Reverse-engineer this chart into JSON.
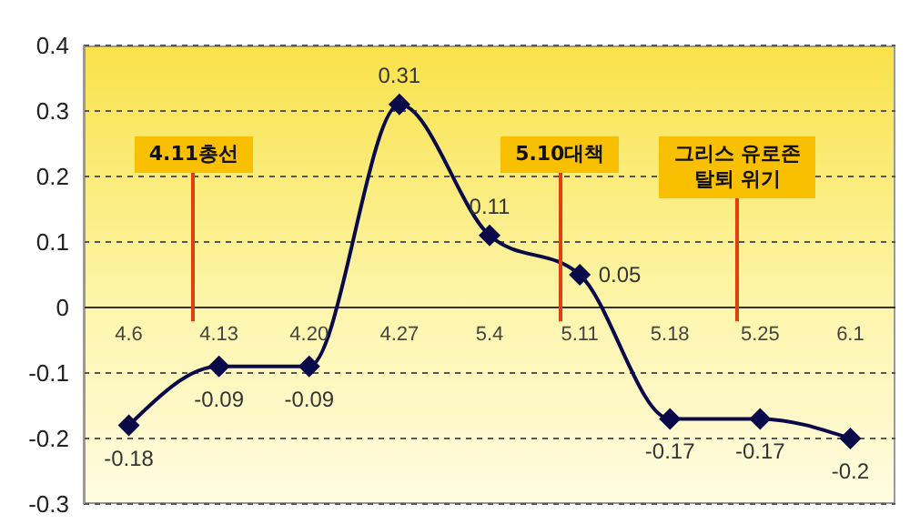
{
  "chart_data": {
    "type": "line",
    "categories": [
      "4.6",
      "4.13",
      "4.20",
      "4.27",
      "5.4",
      "5.11",
      "5.18",
      "5.25",
      "6.1"
    ],
    "series": [
      {
        "color": "#0a0a4a",
        "values": [
          -0.18,
          -0.09,
          -0.09,
          0.31,
          0.11,
          0.05,
          -0.17,
          -0.17,
          -0.2
        ]
      }
    ],
    "ylim": [
      -0.3,
      0.4
    ],
    "yticks": [
      -0.3,
      -0.2,
      -0.1,
      0,
      0.1,
      0.2,
      0.3,
      0.4
    ],
    "grid": "y",
    "marker": "diamond",
    "line_style": "solid",
    "data_labels": true,
    "annotations": [
      "4.11총선",
      "5.10대책",
      "그리스 유로존 탈퇴 위기"
    ]
  }
}
